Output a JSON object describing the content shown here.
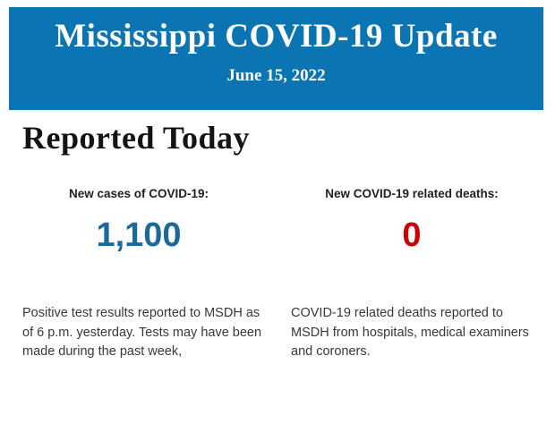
{
  "header": {
    "title": "Mississippi COVID-19 Update",
    "date": "June 15, 2022",
    "background_color": "#0a75b2",
    "text_color": "#ffffff"
  },
  "main": {
    "section_title": "Reported Today",
    "stats": [
      {
        "label": "New cases of COVID-19:",
        "value": "1,100",
        "value_color": "#1b6a9c",
        "description": "Positive test results reported to MSDH as\nof 6 p.m. yesterday. Tests may have been\nmade during the past week,"
      },
      {
        "label": "New COVID-19 related deaths:",
        "value": "0",
        "value_color": "#cc0000",
        "description": "COVID-19 related deaths reported to\nMSDH from hospitals, medical examiners\nand coroners."
      }
    ]
  }
}
